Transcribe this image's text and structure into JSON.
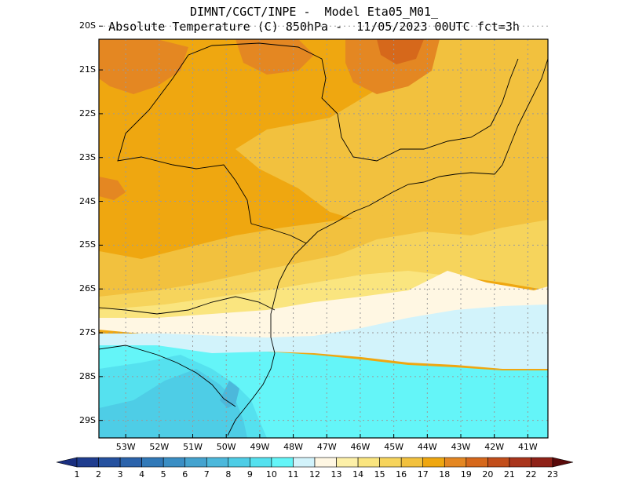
{
  "title": {
    "line1": "DIMNT/CGCT/INPE -  Model Eta05_M01_",
    "line2": "Absolute Temperature (C) 850hPa -  11/05/2023 00UTC fct=3h"
  },
  "map": {
    "lon_range": [
      -53.8,
      -40.4
    ],
    "lat_range": [
      -29.4,
      -20.3
    ],
    "lat_labels": [
      "20S",
      "21S",
      "22S",
      "23S",
      "24S",
      "25S",
      "26S",
      "27S",
      "28S",
      "29S"
    ],
    "lon_labels": [
      "53W",
      "52W",
      "51W",
      "50W",
      "49W",
      "48W",
      "47W",
      "46W",
      "45W",
      "44W",
      "43W",
      "42W",
      "41W"
    ]
  },
  "colorbar": {
    "labels": [
      "1",
      "2",
      "3",
      "4",
      "5",
      "6",
      "7",
      "8",
      "9",
      "10",
      "11",
      "12",
      "13",
      "14",
      "15",
      "16",
      "17",
      "18",
      "19",
      "20",
      "21",
      "22",
      "23"
    ],
    "colors": [
      "#1f3d8f",
      "#25519f",
      "#2b63ab",
      "#3179b8",
      "#3a8ec4",
      "#44a3cf",
      "#4cb8db",
      "#4ecde6",
      "#55e1ef",
      "#64f5f8",
      "#d2f3fb",
      "#fff7e3",
      "#fdf0a8",
      "#fae57f",
      "#f6d45c",
      "#f2c13e",
      "#efa710",
      "#e48722",
      "#d6681b",
      "#c24e1b",
      "#a9351c",
      "#8f2218",
      "#6f1010"
    ],
    "arrow_left_color": "#1a2f80",
    "arrow_right_color": "#5a0a0a"
  },
  "field_colors": {
    "t17": "#efa710",
    "t16": "#f2c13e",
    "t15": "#f6d45c",
    "t14": "#fae57f",
    "t13": "#fdf0a8",
    "t12": "#fff7e3",
    "t11": "#d2f3fb",
    "t10": "#64f5f8",
    "t9": "#55e1ef",
    "t8": "#4ecde6",
    "t7": "#4cb8db",
    "t18": "#e48722",
    "t19": "#d6681b"
  }
}
